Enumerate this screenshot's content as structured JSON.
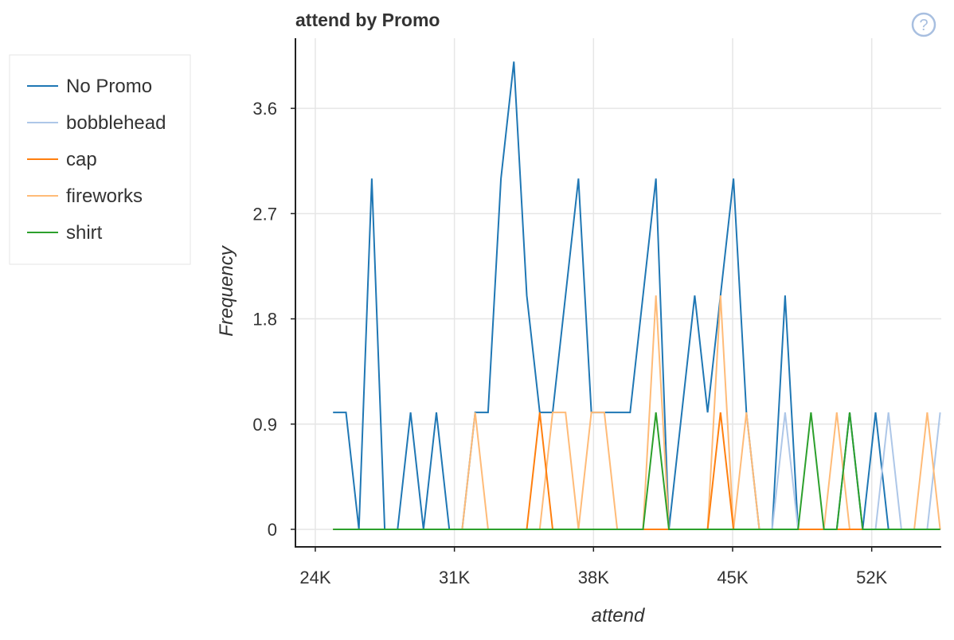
{
  "chart_data": {
    "type": "line",
    "title": "attend by Promo",
    "xlabel": "attend",
    "ylabel": "Frequency",
    "xlim": [
      23000,
      55500
    ],
    "ylim": [
      -0.15,
      4.2
    ],
    "xticks": [
      24000,
      31000,
      38000,
      45000,
      52000
    ],
    "xtick_labels": [
      "24K",
      "31K",
      "38K",
      "45K",
      "52K"
    ],
    "yticks": [
      0,
      0.9,
      1.8,
      2.7,
      3.6
    ],
    "ytick_labels": [
      "0",
      "0.9",
      "1.8",
      "2.7",
      "3.6"
    ],
    "grid": true,
    "legend_position": "left",
    "x": [
      24893,
      25543,
      26193,
      26843,
      27493,
      28143,
      28793,
      29443,
      30093,
      30743,
      31393,
      32043,
      32693,
      33343,
      33993,
      34643,
      35293,
      35943,
      36593,
      37243,
      37893,
      38543,
      39193,
      39843,
      40493,
      41143,
      41793,
      42443,
      43093,
      43743,
      44393,
      45043,
      45693,
      46343,
      46993,
      47643,
      48293,
      48943,
      49593,
      50243,
      50893,
      51543,
      52193,
      52843,
      53493,
      54143,
      54793,
      55443
    ],
    "series": [
      {
        "name": "No Promo",
        "color": "#1f77b4",
        "values": [
          1,
          1,
          0,
          3,
          0,
          0,
          1,
          0,
          1,
          0,
          0,
          1,
          1,
          3,
          4,
          2,
          1,
          1,
          2,
          3,
          1,
          1,
          1,
          1,
          2,
          3,
          0,
          1,
          2,
          1,
          2,
          3,
          1,
          0,
          0,
          2,
          0,
          0,
          0,
          0,
          1,
          0,
          1,
          0,
          0,
          0,
          0,
          0
        ]
      },
      {
        "name": "bobblehead",
        "color": "#aec7e8",
        "values": [
          0,
          0,
          0,
          0,
          0,
          0,
          0,
          0,
          0,
          0,
          0,
          0,
          0,
          0,
          0,
          0,
          0,
          0,
          0,
          0,
          0,
          0,
          0,
          0,
          0,
          0,
          0,
          0,
          0,
          0,
          0,
          0,
          0,
          0,
          0,
          1,
          0,
          0,
          0,
          0,
          0,
          0,
          0,
          1,
          0,
          0,
          0,
          1
        ]
      },
      {
        "name": "cap",
        "color": "#ff7f0e",
        "values": [
          0,
          0,
          0,
          0,
          0,
          0,
          0,
          0,
          0,
          0,
          0,
          0,
          0,
          0,
          0,
          0,
          1,
          0,
          0,
          0,
          0,
          0,
          0,
          0,
          0,
          0,
          0,
          0,
          0,
          0,
          1,
          0,
          0,
          0,
          0,
          0,
          0,
          0,
          0,
          0,
          0,
          0,
          0,
          0,
          0,
          0,
          0,
          0
        ]
      },
      {
        "name": "fireworks",
        "color": "#ffbb78",
        "values": [
          0,
          0,
          0,
          0,
          0,
          0,
          0,
          0,
          0,
          0,
          0,
          1,
          0,
          0,
          0,
          0,
          0,
          1,
          1,
          0,
          1,
          1,
          0,
          0,
          0,
          2,
          0,
          0,
          0,
          0,
          2,
          0,
          1,
          0,
          0,
          0,
          0,
          0,
          0,
          1,
          0,
          0,
          0,
          0,
          0,
          0,
          1,
          0
        ]
      },
      {
        "name": "shirt",
        "color": "#2ca02c",
        "values": [
          0,
          0,
          0,
          0,
          0,
          0,
          0,
          0,
          0,
          0,
          0,
          0,
          0,
          0,
          0,
          0,
          0,
          0,
          0,
          0,
          0,
          0,
          0,
          0,
          0,
          1,
          0,
          0,
          0,
          0,
          0,
          0,
          0,
          0,
          0,
          0,
          0,
          1,
          0,
          0,
          1,
          0,
          0,
          0,
          0,
          0,
          0,
          0
        ]
      }
    ]
  },
  "help_icon": "question-mark-circle-icon"
}
